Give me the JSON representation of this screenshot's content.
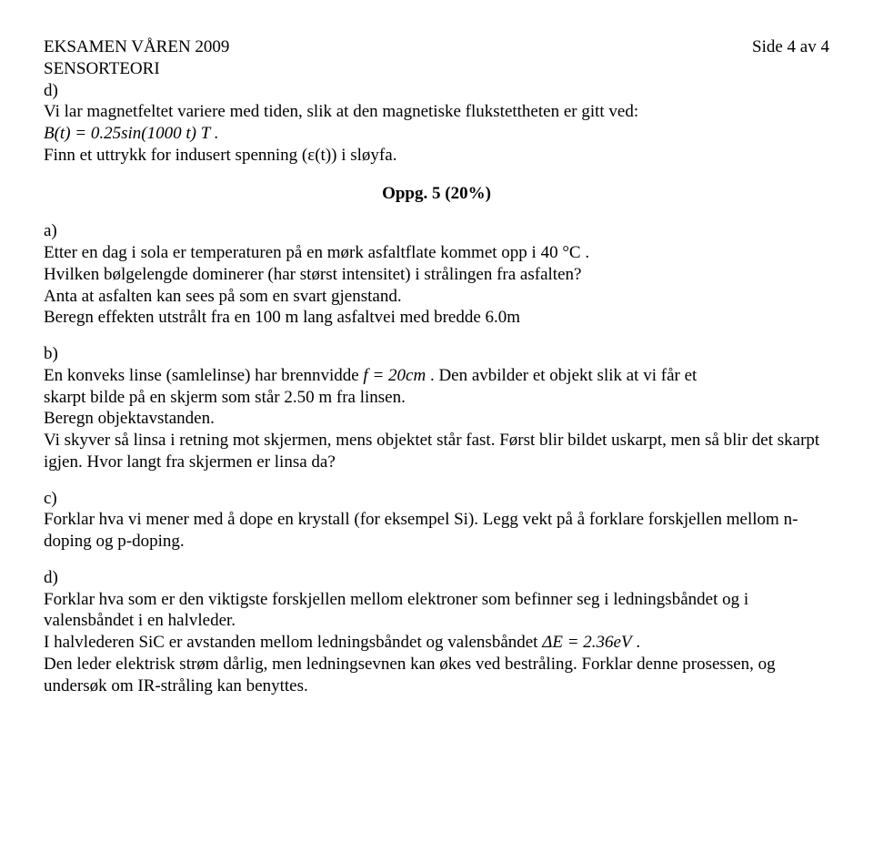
{
  "header": {
    "left1": "EKSAMEN VÅREN 2009",
    "right": "Side 4 av 4",
    "left2": "SENSORTEORI"
  },
  "d1": {
    "label": "d)",
    "line1": "Vi lar magnetfeltet variere med tiden, slik at den magnetiske flukstettheten er gitt ved:",
    "eqn": "B(t) = 0.25sin(1000 t)  T .",
    "line2": "Finn et uttrykk for indusert spenning (ε(t)) i sløyfa."
  },
  "task5": {
    "title": "Oppg. 5 (20%)"
  },
  "a": {
    "label": "a)",
    "line1": "Etter en dag i sola er temperaturen på en mørk asfaltflate kommet opp i  40 °C .",
    "line2": "Hvilken bølgelengde dominerer (har størst intensitet) i strålingen fra asfalten?",
    "line3": "Anta at asfalten kan sees på som en svart gjenstand.",
    "line4": "Beregn effekten utstrålt fra en 100 m lang asfaltvei med bredde 6.0m"
  },
  "b": {
    "label": "b)",
    "line1a": "En konveks linse (samlelinse) har brennvidde  ",
    "line1eq": "f = 20cm",
    "line1b": " . Den avbilder et objekt slik at vi får et",
    "line2": "skarpt bilde på en skjerm som står 2.50 m fra linsen.",
    "line3": "Beregn objektavstanden.",
    "line4": "Vi skyver så linsa i retning mot skjermen, mens objektet står fast. Først blir bildet uskarpt, men så blir det skarpt igjen. Hvor langt fra skjermen er linsa da?"
  },
  "c": {
    "label": "c)",
    "line1": "Forklar hva vi mener med å dope en krystall (for eksempel Si). Legg vekt på å forklare forskjellen mellom n-doping og p-doping."
  },
  "d2": {
    "label": "d)",
    "line1": "Forklar hva som er den viktigste forskjellen mellom elektroner som befinner seg i ledningsbåndet og i valensbåndet i en halvleder.",
    "line2a": "I halvlederen SiC er avstanden mellom ledningsbåndet og valensbåndet  ",
    "line2eq": "ΔE = 2.36eV",
    "line2b": " .",
    "line3": "Den leder elektrisk strøm dårlig, men ledningsevnen kan økes ved bestråling. Forklar denne prosessen, og undersøk om IR-stråling kan benyttes."
  }
}
